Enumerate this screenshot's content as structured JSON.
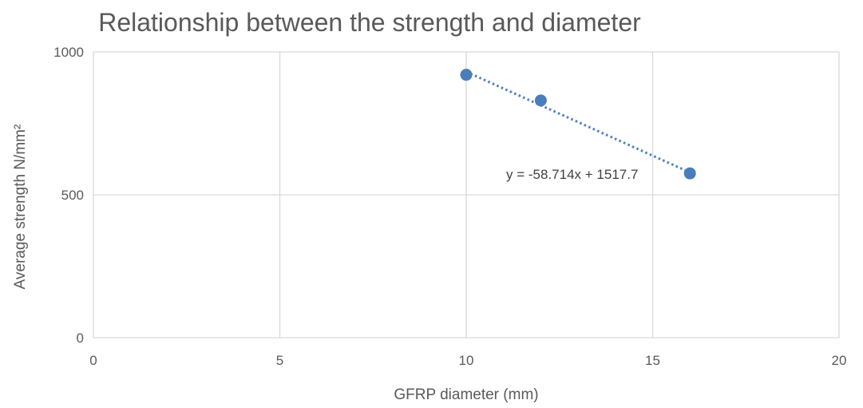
{
  "chart_data": {
    "type": "scatter",
    "title": "Relationship between the strength and diameter",
    "xlabel": "GFRP diameter (mm)",
    "ylabel": "Average strength N/mm²",
    "xlim": [
      0,
      20
    ],
    "ylim": [
      0,
      1000
    ],
    "xticks": [
      0,
      5,
      10,
      15,
      20
    ],
    "yticks": [
      0,
      500,
      1000
    ],
    "grid": true,
    "legend": "none",
    "series": [
      {
        "points": [
          {
            "x": 10,
            "y": 920
          },
          {
            "x": 12,
            "y": 830
          },
          {
            "x": 16,
            "y": 575
          }
        ]
      }
    ],
    "trendline": {
      "type": "linear",
      "slope": -58.714,
      "intercept": 1517.7,
      "x_range": [
        10,
        16
      ],
      "label": "y = -58.714x + 1517.7"
    },
    "colors": {
      "marker": "#4a7ebb",
      "trendline": "#4a7ebb",
      "grid": "#d9d9d9",
      "text": "#595959"
    }
  }
}
